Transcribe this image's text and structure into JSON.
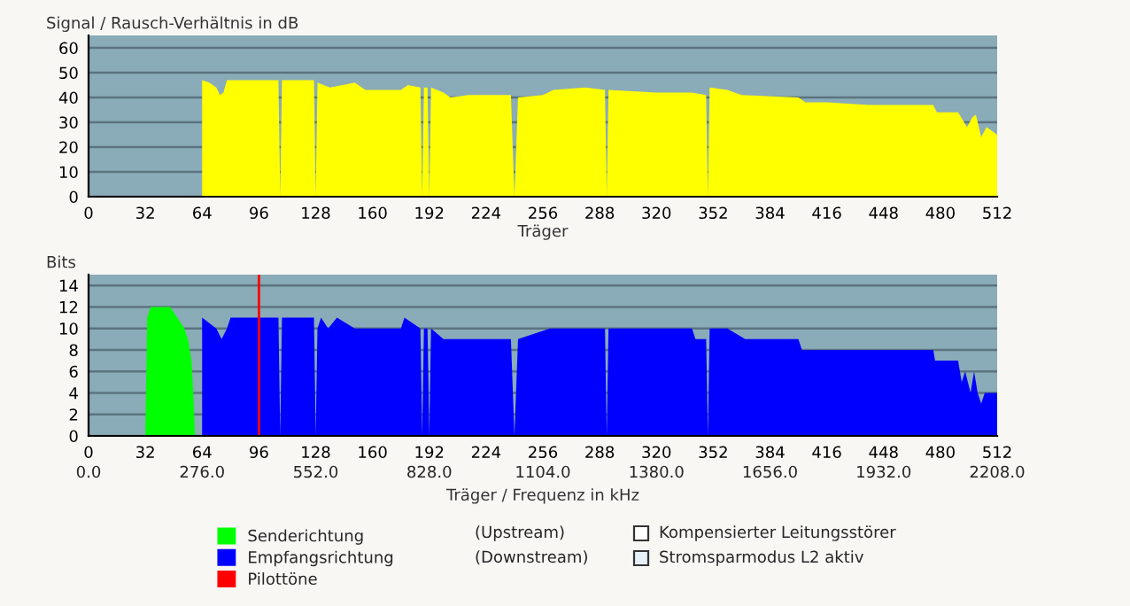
{
  "chart_data": [
    {
      "type": "area",
      "title": "Signal / Rausch-Verhältnis in dB",
      "xlabel": "Träger",
      "xlim": [
        0,
        512
      ],
      "xticks": [
        0,
        32,
        64,
        96,
        128,
        160,
        192,
        224,
        256,
        288,
        320,
        352,
        384,
        416,
        448,
        480,
        512
      ],
      "ylim": [
        0,
        65
      ],
      "yticks": [
        0,
        10,
        20,
        30,
        40,
        50,
        60
      ],
      "grid": "y",
      "legend": false,
      "bands": [
        {
          "axis": "y",
          "from": 0,
          "to": 65,
          "color": "#8aabb8"
        }
      ],
      "series": [
        {
          "color": "#ffff00",
          "x": [
            64,
            68,
            72,
            74,
            76,
            78,
            96,
            107,
            108,
            109,
            127,
            128,
            129,
            136,
            150,
            156,
            176,
            180,
            187,
            188,
            189,
            191,
            192,
            193,
            200,
            204,
            214,
            238,
            240,
            242,
            256,
            262,
            280,
            291,
            292,
            293,
            320,
            340,
            348,
            349,
            350,
            360,
            368,
            400,
            404,
            416,
            440,
            460,
            476,
            478,
            490,
            495,
            498,
            500,
            503,
            506,
            512
          ],
          "values": [
            47,
            46,
            44,
            41,
            42,
            47,
            47,
            47,
            0,
            47,
            47,
            0,
            46,
            44,
            46,
            43,
            43,
            45,
            44,
            0,
            44,
            44,
            0,
            44,
            42,
            40,
            41,
            41,
            0,
            40,
            41,
            43,
            44,
            43,
            0,
            43,
            42,
            42,
            41,
            0,
            44,
            43,
            41,
            40,
            38,
            38,
            37,
            37,
            37,
            34,
            34,
            28,
            32,
            33,
            24,
            28,
            25
          ]
        }
      ]
    },
    {
      "type": "area",
      "title": "Bits",
      "xlabel": "Träger / Frequenz in kHz",
      "xlim": [
        0,
        512
      ],
      "xticks": [
        0,
        32,
        64,
        96,
        128,
        160,
        192,
        224,
        256,
        288,
        320,
        352,
        384,
        416,
        448,
        480,
        512
      ],
      "x2lim": [
        0,
        2208
      ],
      "x2ticks": [
        {
          "value": 0,
          "label": "0.0"
        },
        {
          "value": 276,
          "label": "276.0"
        },
        {
          "value": 552,
          "label": "552.0"
        },
        {
          "value": 828,
          "label": "828.0"
        },
        {
          "value": 1104,
          "label": "1104.0"
        },
        {
          "value": 1380,
          "label": "1380.0"
        },
        {
          "value": 1656,
          "label": "1656.0"
        },
        {
          "value": 1932,
          "label": "1932.0"
        },
        {
          "value": 2208,
          "label": "2208.0"
        }
      ],
      "ylim": [
        0,
        15
      ],
      "yticks": [
        0,
        2,
        4,
        6,
        8,
        10,
        12,
        14
      ],
      "grid": "y",
      "legend": "bottom",
      "bands": [
        {
          "axis": "y",
          "from": 0,
          "to": 15,
          "color": "#8aabb8"
        }
      ],
      "series": [
        {
          "name": "Senderichtung",
          "color": "#00ff00",
          "x": [
            32,
            33,
            35,
            46,
            50,
            54,
            56,
            58,
            59,
            60
          ],
          "values": [
            0,
            11,
            12,
            12,
            11,
            10,
            9,
            7,
            4,
            0
          ]
        },
        {
          "name": "Empfangsrichtung",
          "color": "#0000ff",
          "x": [
            64,
            72,
            75,
            78,
            80,
            107,
            108,
            109,
            127,
            128,
            129,
            131,
            135,
            140,
            150,
            176,
            178,
            187,
            188,
            189,
            191,
            192,
            193,
            200,
            238,
            240,
            242,
            260,
            291,
            292,
            293,
            340,
            342,
            348,
            349,
            350,
            360,
            370,
            400,
            402,
            430,
            460,
            476,
            477,
            490,
            492,
            494,
            497,
            499,
            501,
            503,
            505,
            512
          ],
          "values": [
            11,
            10,
            9,
            10,
            11,
            11,
            0,
            11,
            11,
            0,
            10,
            11,
            10,
            11,
            10,
            10,
            11,
            10,
            0,
            10,
            10,
            0,
            10,
            9,
            9,
            0,
            9,
            10,
            10,
            0,
            10,
            10,
            9,
            9,
            0,
            10,
            10,
            9,
            9,
            8,
            8,
            8,
            8,
            7,
            7,
            5,
            6,
            4,
            6,
            4,
            3,
            4,
            4
          ]
        }
      ],
      "ref_lines": [
        {
          "axis": "x",
          "value": 96,
          "label": "Pilottöne",
          "color": "#ff0000"
        }
      ],
      "annotations": [
        "(Upstream)",
        "(Downstream)",
        "Kompensierter Leitungsstörer",
        "Stromsparmodus L2 aktiv"
      ]
    }
  ]
}
